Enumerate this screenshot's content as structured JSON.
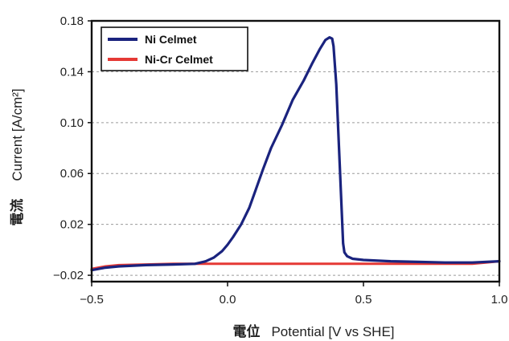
{
  "chart_data": {
    "type": "line",
    "title": "",
    "xlabel": "Potential [V vs SHE]",
    "xlabel_prefix": "電位",
    "ylabel": "Current [A/cm²]",
    "ylabel_prefix": "電流",
    "xlim": [
      -0.5,
      1.0
    ],
    "ylim": [
      -0.025,
      0.18
    ],
    "xticks": [
      -0.5,
      0.0,
      0.5,
      1.0
    ],
    "xtick_labels": [
      "−0.5",
      "0.0",
      "0.5",
      "1.0"
    ],
    "yticks": [
      -0.02,
      0.02,
      0.06,
      0.1,
      0.14,
      0.18
    ],
    "ytick_labels": [
      "−0.02",
      "0.02",
      "0.06",
      "0.10",
      "0.14",
      "0.18"
    ],
    "grid": "horizontal dotted",
    "legend_position": "top-left",
    "series": [
      {
        "name": "Ni Celmet",
        "color": "#1a237e",
        "x": [
          -0.5,
          -0.45,
          -0.4,
          -0.3,
          -0.2,
          -0.12,
          -0.08,
          -0.05,
          -0.02,
          0.0,
          0.02,
          0.05,
          0.08,
          0.1,
          0.13,
          0.16,
          0.2,
          0.24,
          0.28,
          0.31,
          0.34,
          0.36,
          0.375,
          0.385,
          0.39,
          0.4,
          0.41,
          0.42,
          0.425,
          0.43,
          0.44,
          0.46,
          0.5,
          0.6,
          0.7,
          0.8,
          0.9,
          1.0
        ],
        "y": [
          -0.016,
          -0.014,
          -0.013,
          -0.012,
          -0.0115,
          -0.011,
          -0.009,
          -0.006,
          -0.001,
          0.004,
          0.01,
          0.02,
          0.033,
          0.045,
          0.063,
          0.08,
          0.098,
          0.118,
          0.133,
          0.146,
          0.158,
          0.165,
          0.167,
          0.166,
          0.16,
          0.13,
          0.08,
          0.03,
          0.005,
          -0.002,
          -0.005,
          -0.007,
          -0.008,
          -0.009,
          -0.0095,
          -0.01,
          -0.01,
          -0.009
        ]
      },
      {
        "name": "Ni-Cr Celmet",
        "color": "#e53935",
        "x": [
          -0.5,
          -0.45,
          -0.4,
          -0.3,
          -0.2,
          -0.1,
          0.0,
          0.1,
          0.2,
          0.3,
          0.4,
          0.5,
          0.6,
          0.7,
          0.8,
          0.9,
          0.95,
          1.0
        ],
        "y": [
          -0.015,
          -0.013,
          -0.012,
          -0.0115,
          -0.011,
          -0.011,
          -0.011,
          -0.011,
          -0.011,
          -0.011,
          -0.011,
          -0.011,
          -0.011,
          -0.011,
          -0.011,
          -0.011,
          -0.01,
          -0.009
        ]
      }
    ]
  }
}
